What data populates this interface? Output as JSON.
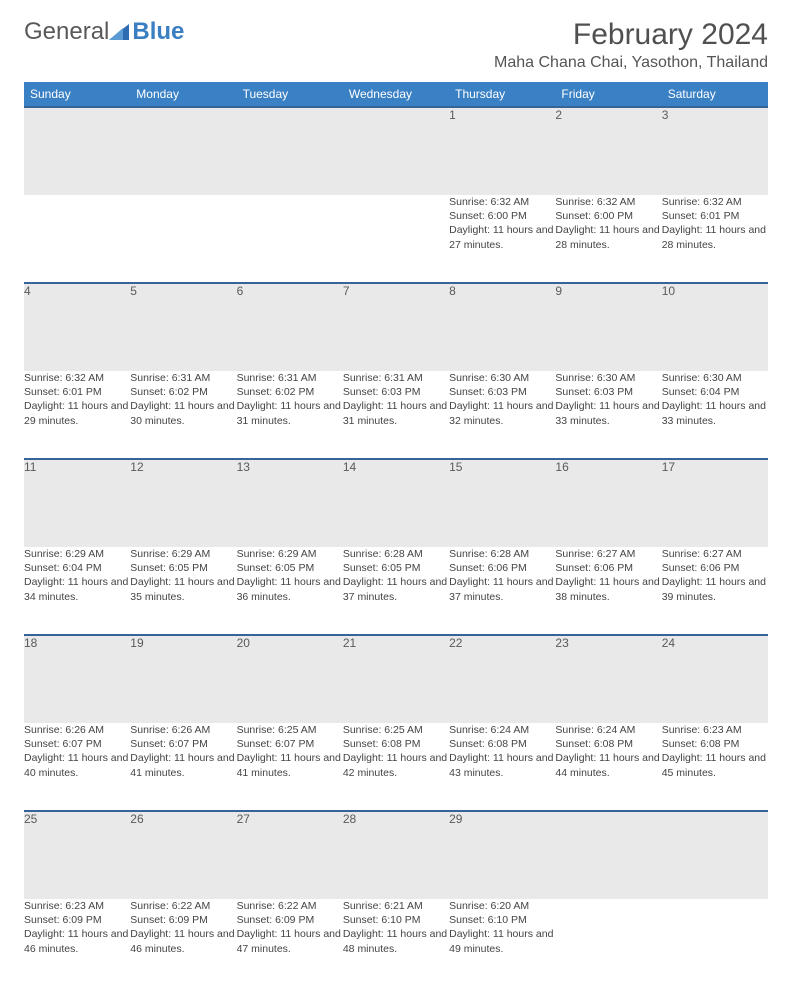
{
  "logo": {
    "general": "General",
    "blue": "Blue"
  },
  "title": "February 2024",
  "location": "Maha Chana Chai, Yasothon, Thailand",
  "colors": {
    "header_bg": "#3a80c4",
    "header_text": "#ffffff",
    "daynum_bg": "#e9e9e9",
    "row_border": "#34649a",
    "body_text": "#444444",
    "title_text": "#505050"
  },
  "typography": {
    "title_fontsize": 30,
    "location_fontsize": 16,
    "header_fontsize": 12,
    "cell_fontsize": 10.5
  },
  "days_of_week": [
    "Sunday",
    "Monday",
    "Tuesday",
    "Wednesday",
    "Thursday",
    "Friday",
    "Saturday"
  ],
  "weeks": [
    [
      null,
      null,
      null,
      null,
      {
        "n": "1",
        "rise": "6:32 AM",
        "set": "6:00 PM",
        "dl": "11 hours and 27 minutes."
      },
      {
        "n": "2",
        "rise": "6:32 AM",
        "set": "6:00 PM",
        "dl": "11 hours and 28 minutes."
      },
      {
        "n": "3",
        "rise": "6:32 AM",
        "set": "6:01 PM",
        "dl": "11 hours and 28 minutes."
      }
    ],
    [
      {
        "n": "4",
        "rise": "6:32 AM",
        "set": "6:01 PM",
        "dl": "11 hours and 29 minutes."
      },
      {
        "n": "5",
        "rise": "6:31 AM",
        "set": "6:02 PM",
        "dl": "11 hours and 30 minutes."
      },
      {
        "n": "6",
        "rise": "6:31 AM",
        "set": "6:02 PM",
        "dl": "11 hours and 31 minutes."
      },
      {
        "n": "7",
        "rise": "6:31 AM",
        "set": "6:03 PM",
        "dl": "11 hours and 31 minutes."
      },
      {
        "n": "8",
        "rise": "6:30 AM",
        "set": "6:03 PM",
        "dl": "11 hours and 32 minutes."
      },
      {
        "n": "9",
        "rise": "6:30 AM",
        "set": "6:03 PM",
        "dl": "11 hours and 33 minutes."
      },
      {
        "n": "10",
        "rise": "6:30 AM",
        "set": "6:04 PM",
        "dl": "11 hours and 33 minutes."
      }
    ],
    [
      {
        "n": "11",
        "rise": "6:29 AM",
        "set": "6:04 PM",
        "dl": "11 hours and 34 minutes."
      },
      {
        "n": "12",
        "rise": "6:29 AM",
        "set": "6:05 PM",
        "dl": "11 hours and 35 minutes."
      },
      {
        "n": "13",
        "rise": "6:29 AM",
        "set": "6:05 PM",
        "dl": "11 hours and 36 minutes."
      },
      {
        "n": "14",
        "rise": "6:28 AM",
        "set": "6:05 PM",
        "dl": "11 hours and 37 minutes."
      },
      {
        "n": "15",
        "rise": "6:28 AM",
        "set": "6:06 PM",
        "dl": "11 hours and 37 minutes."
      },
      {
        "n": "16",
        "rise": "6:27 AM",
        "set": "6:06 PM",
        "dl": "11 hours and 38 minutes."
      },
      {
        "n": "17",
        "rise": "6:27 AM",
        "set": "6:06 PM",
        "dl": "11 hours and 39 minutes."
      }
    ],
    [
      {
        "n": "18",
        "rise": "6:26 AM",
        "set": "6:07 PM",
        "dl": "11 hours and 40 minutes."
      },
      {
        "n": "19",
        "rise": "6:26 AM",
        "set": "6:07 PM",
        "dl": "11 hours and 41 minutes."
      },
      {
        "n": "20",
        "rise": "6:25 AM",
        "set": "6:07 PM",
        "dl": "11 hours and 41 minutes."
      },
      {
        "n": "21",
        "rise": "6:25 AM",
        "set": "6:08 PM",
        "dl": "11 hours and 42 minutes."
      },
      {
        "n": "22",
        "rise": "6:24 AM",
        "set": "6:08 PM",
        "dl": "11 hours and 43 minutes."
      },
      {
        "n": "23",
        "rise": "6:24 AM",
        "set": "6:08 PM",
        "dl": "11 hours and 44 minutes."
      },
      {
        "n": "24",
        "rise": "6:23 AM",
        "set": "6:08 PM",
        "dl": "11 hours and 45 minutes."
      }
    ],
    [
      {
        "n": "25",
        "rise": "6:23 AM",
        "set": "6:09 PM",
        "dl": "11 hours and 46 minutes."
      },
      {
        "n": "26",
        "rise": "6:22 AM",
        "set": "6:09 PM",
        "dl": "11 hours and 46 minutes."
      },
      {
        "n": "27",
        "rise": "6:22 AM",
        "set": "6:09 PM",
        "dl": "11 hours and 47 minutes."
      },
      {
        "n": "28",
        "rise": "6:21 AM",
        "set": "6:10 PM",
        "dl": "11 hours and 48 minutes."
      },
      {
        "n": "29",
        "rise": "6:20 AM",
        "set": "6:10 PM",
        "dl": "11 hours and 49 minutes."
      },
      null,
      null
    ]
  ],
  "labels": {
    "sunrise": "Sunrise:",
    "sunset": "Sunset:",
    "daylight": "Daylight:"
  }
}
